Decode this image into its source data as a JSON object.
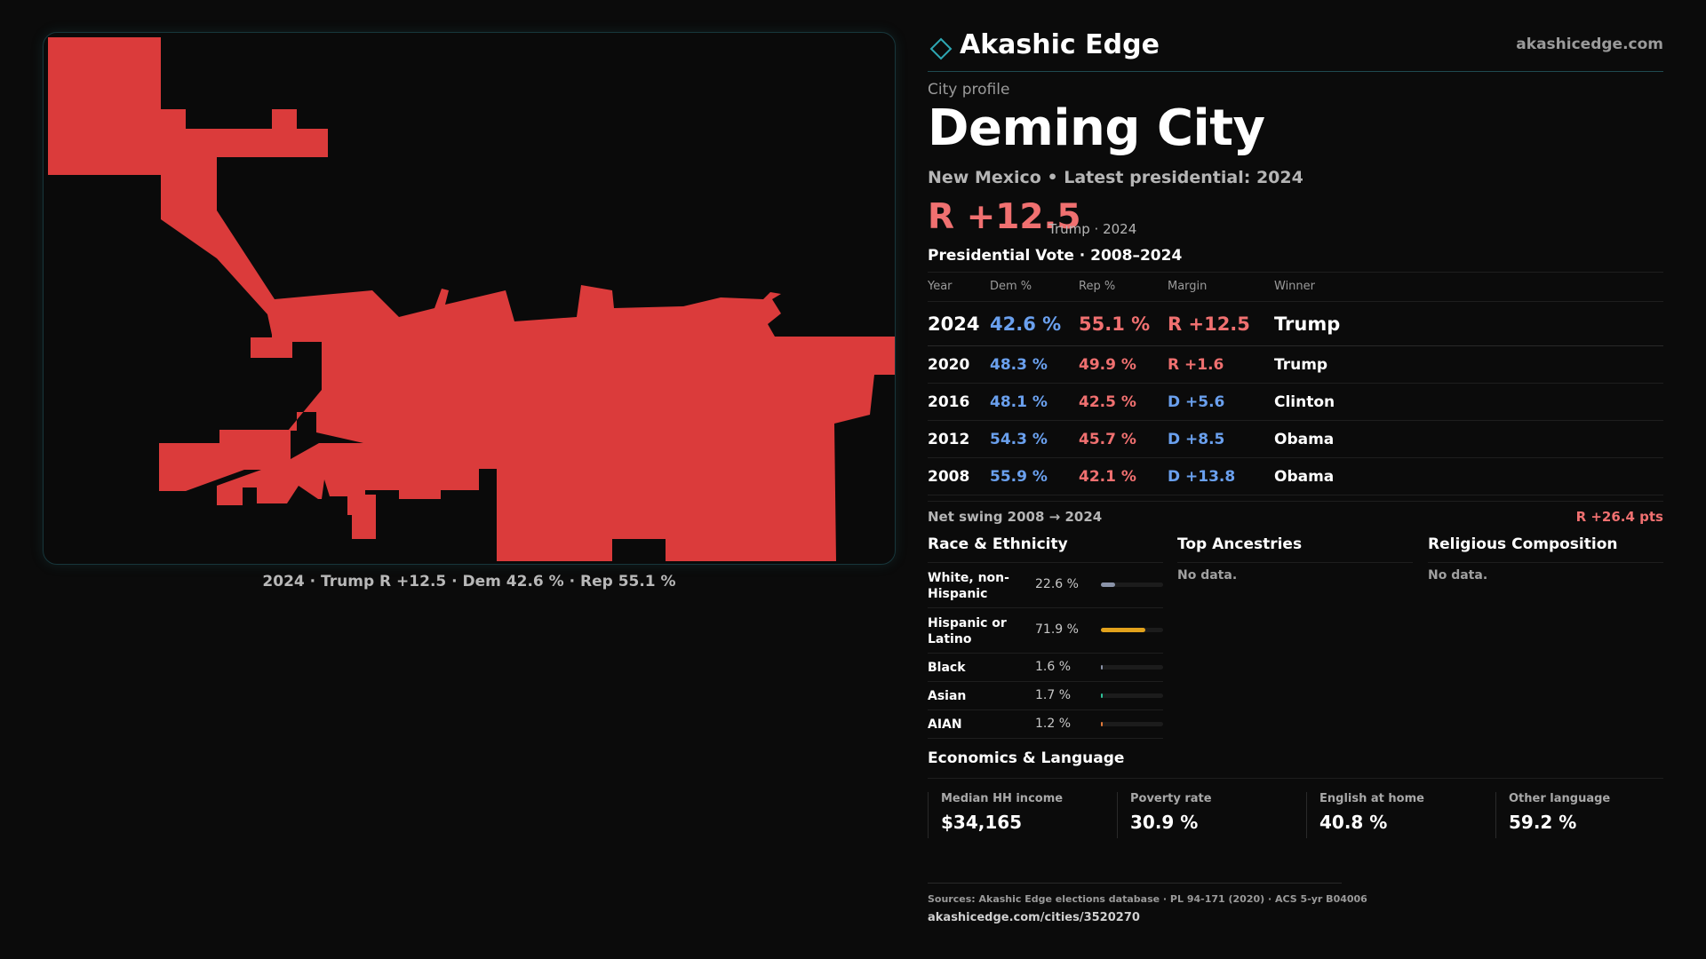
{
  "map": {
    "caption": "2024 · Trump R +12.5 · Dem 42.6 % · Rep 55.1 %",
    "fill_color": "#db3b3b",
    "border_color": "#17363b"
  },
  "header": {
    "brand": "Akashic Edge",
    "url": "akashicedge.com",
    "logo_icon": "diamond-icon"
  },
  "profile": {
    "kicker": "City profile",
    "title": "Deming City",
    "subtitle": "New Mexico • Latest presidential: 2024",
    "margin": "R +12.5",
    "margin_note": "Trump · 2024"
  },
  "vote": {
    "title": "Presidential Vote · 2008–2024",
    "headers": {
      "year": "Year",
      "dem": "Dem %",
      "rep": "Rep %",
      "margin": "Margin",
      "winner": "Winner"
    },
    "rows": [
      {
        "year": "2024",
        "dem": "42.6 %",
        "rep": "55.1 %",
        "margin": "R +12.5",
        "winner": "Trump",
        "party": "R"
      },
      {
        "year": "2020",
        "dem": "48.3 %",
        "rep": "49.9 %",
        "margin": "R +1.6",
        "winner": "Trump",
        "party": "R"
      },
      {
        "year": "2016",
        "dem": "48.1 %",
        "rep": "42.5 %",
        "margin": "D +5.6",
        "winner": "Clinton",
        "party": "D"
      },
      {
        "year": "2012",
        "dem": "54.3 %",
        "rep": "45.7 %",
        "margin": "D +8.5",
        "winner": "Obama",
        "party": "D"
      },
      {
        "year": "2008",
        "dem": "55.9 %",
        "rep": "42.1 %",
        "margin": "D +13.8",
        "winner": "Obama",
        "party": "D"
      }
    ],
    "swing_label": "Net swing 2008 → 2024",
    "swing_value": "R +26.4 pts"
  },
  "race": {
    "title": "Race & Ethnicity",
    "items": [
      {
        "label": "White, non-Hispanic",
        "value": "22.6 %",
        "share": 0.226,
        "color": "#8a93a8"
      },
      {
        "label": "Hispanic or Latino",
        "value": "71.9 %",
        "share": 0.719,
        "color": "#e2a21c"
      },
      {
        "label": "Black",
        "value": "1.6 %",
        "share": 0.016,
        "color": "#8a93a8"
      },
      {
        "label": "Asian",
        "value": "1.7 %",
        "share": 0.017,
        "color": "#2fc49a"
      },
      {
        "label": "AIAN",
        "value": "1.2 %",
        "share": 0.012,
        "color": "#e27a3a"
      }
    ]
  },
  "ancestries": {
    "title": "Top Ancestries",
    "empty": "No data."
  },
  "religion": {
    "title": "Religious Composition",
    "empty": "No data."
  },
  "economics": {
    "title": "Economics & Language",
    "cells": [
      {
        "label": "Median HH income",
        "value": "$34,165"
      },
      {
        "label": "Poverty rate",
        "value": "30.9 %"
      },
      {
        "label": "English at home",
        "value": "40.8 %"
      },
      {
        "label": "Other language",
        "value": "59.2 %"
      }
    ]
  },
  "footer": {
    "sources": "Sources: Akashic Edge elections database · PL 94-171 (2020) · ACS 5-yr B04006",
    "link": "akashicedge.com/cities/3520270"
  }
}
